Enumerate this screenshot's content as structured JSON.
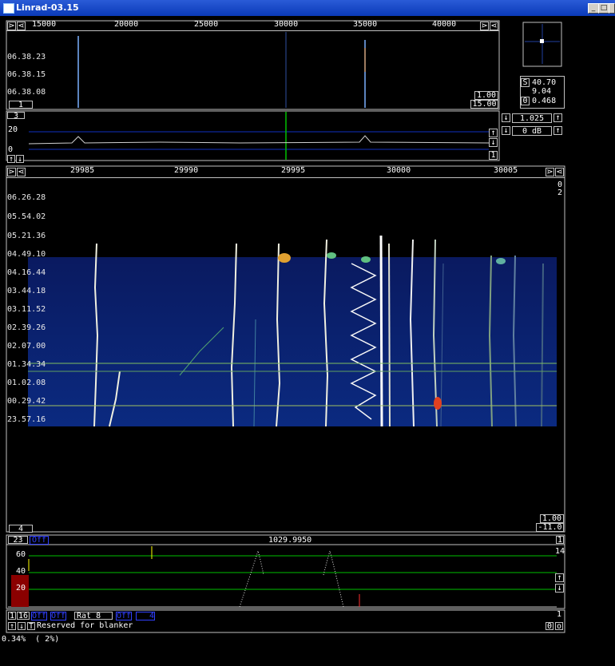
{
  "window": {
    "title": "Linrad-03.15",
    "minimize": "_",
    "maximize": "□",
    "close": "×"
  },
  "top_waterfall": {
    "scale_ticks": [
      "15000",
      "20000",
      "25000",
      "30000",
      "35000",
      "40000"
    ],
    "time_labels": [
      "06.38.23",
      "06.38.15",
      "06.38.08"
    ],
    "avg_box": "1",
    "gain_top": "1.00",
    "gain_bottom": "15.00",
    "nav_left": "⋗",
    "nav_left2": "⋖",
    "nav_right": "⋗",
    "nav_right2": "⋖"
  },
  "spectrum": {
    "level_20": "20",
    "level_0": "0",
    "box_top": "3",
    "box_right": "1"
  },
  "right_panel": {
    "s": "40.70",
    "s_label": "S",
    "val2": "9.04",
    "o": "0.468",
    "o_label": "0",
    "ctrl1_value": "1.025",
    "ctrl2_value": "0 dB"
  },
  "baseband": {
    "scale_ticks": [
      "29985",
      "29990",
      "29995",
      "30000",
      "30005"
    ],
    "right_digits": [
      "0",
      "2"
    ],
    "time_labels": [
      "06.26.28",
      "05.54.02",
      "05.21.36",
      "04.49.10",
      "04.16.44",
      "03.44.18",
      "03.11.52",
      "02.39.26",
      "02.07.00",
      "01.34.34",
      "01.02.08",
      "00.29.42",
      "23.57.16"
    ],
    "gain_top": "1.00",
    "gain_bottom": "-11.0",
    "avg_box": "4"
  },
  "audio": {
    "box_23": "23",
    "off_label": "Off",
    "frequency": "1029.9950",
    "box_1": "1",
    "levels": [
      "60",
      "40",
      "20"
    ],
    "right_level": "14",
    "bottom_box1": "1",
    "bottom_box2": "16",
    "off1": "Off",
    "off2": "Off",
    "rat_label": "Rat",
    "rat_value": "8",
    "off3": "Off",
    "num4": "4",
    "right_1": "1",
    "blanker_text": "Reserved for blanker",
    "box_t": "T",
    "box_0": "0",
    "box_o": "o"
  },
  "status": {
    "cpu": "0.34%  ( 2%)"
  },
  "colors": {
    "accent_green": "#00c000",
    "blue_line": "#1030c0",
    "yellow": "#ffff00",
    "titlebar": "#0a3ab8"
  }
}
